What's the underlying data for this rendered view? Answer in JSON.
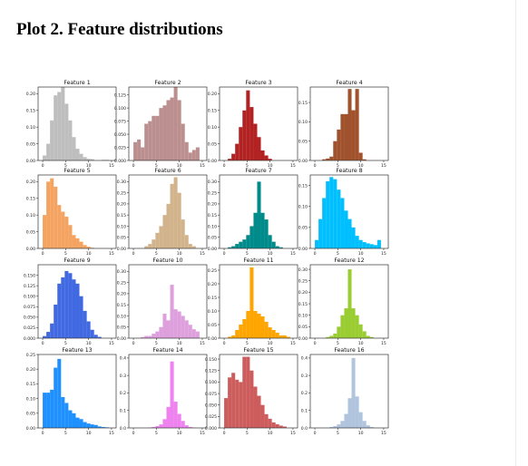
{
  "page": {
    "title": "Plot 2. Feature distributions"
  },
  "chart_data": [
    {
      "type": "bar",
      "title": "Feature 1",
      "color": "#bebebe",
      "xlim": [
        -1,
        16
      ],
      "ylim": [
        0,
        0.22
      ],
      "xticks": [
        {
          "v": 0,
          "t": "0"
        },
        {
          "v": 5,
          "t": "5"
        },
        {
          "v": 10,
          "t": "10"
        },
        {
          "v": 15,
          "t": "15"
        }
      ],
      "yticks": [
        {
          "v": 0,
          "t": "0.00"
        },
        {
          "v": 0.05,
          "t": "0.05"
        },
        {
          "v": 0.1,
          "t": "0.10"
        },
        {
          "v": 0.15,
          "t": "0.15"
        },
        {
          "v": 0.2,
          "t": "0.20"
        }
      ],
      "bin_start": 0,
      "bin_width": 0.8,
      "values": [
        0.015,
        0.05,
        0.12,
        0.195,
        0.205,
        0.22,
        0.17,
        0.12,
        0.07,
        0.035,
        0.02,
        0.01,
        0.005,
        0.004,
        0.0,
        0.0,
        0.002,
        0.002
      ]
    },
    {
      "type": "bar",
      "title": "Feature 2",
      "color": "#bc8f8f",
      "xlim": [
        -1,
        16
      ],
      "ylim": [
        0,
        0.14
      ],
      "xticks": [
        {
          "v": 0,
          "t": "0"
        },
        {
          "v": 5,
          "t": "5"
        },
        {
          "v": 10,
          "t": "10"
        },
        {
          "v": 15,
          "t": "15"
        }
      ],
      "yticks": [
        {
          "v": 0,
          "t": "0.000"
        },
        {
          "v": 0.025,
          "t": "0.025"
        },
        {
          "v": 0.05,
          "t": "0.050"
        },
        {
          "v": 0.075,
          "t": "0.075"
        },
        {
          "v": 0.1,
          "t": "0.100"
        },
        {
          "v": 0.125,
          "t": "0.125"
        }
      ],
      "bin_start": 0,
      "bin_width": 0.8,
      "values": [
        0.035,
        0.04,
        0.025,
        0.07,
        0.075,
        0.085,
        0.085,
        0.1,
        0.105,
        0.115,
        0.12,
        0.14,
        0.115,
        0.07,
        0.035,
        0.015,
        0.02,
        0.025
      ]
    },
    {
      "type": "bar",
      "title": "Feature 3",
      "color": "#b22222",
      "xlim": [
        -1,
        16
      ],
      "ylim": [
        0,
        0.22
      ],
      "xticks": [
        {
          "v": 0,
          "t": "0"
        },
        {
          "v": 5,
          "t": "5"
        },
        {
          "v": 10,
          "t": "10"
        },
        {
          "v": 15,
          "t": "15"
        }
      ],
      "yticks": [
        {
          "v": 0,
          "t": "0.00"
        },
        {
          "v": 0.05,
          "t": "0.05"
        },
        {
          "v": 0.1,
          "t": "0.10"
        },
        {
          "v": 0.15,
          "t": "0.15"
        },
        {
          "v": 0.2,
          "t": "0.20"
        }
      ],
      "bin_start": 0,
      "bin_width": 0.8,
      "values": [
        0.0,
        0.005,
        0.02,
        0.05,
        0.1,
        0.15,
        0.21,
        0.16,
        0.11,
        0.07,
        0.03,
        0.015,
        0.005,
        0.0,
        0.0,
        0.0,
        0.0,
        0.0
      ]
    },
    {
      "type": "bar",
      "title": "Feature 4",
      "color": "#a0522d",
      "xlim": [
        -1,
        16
      ],
      "ylim": [
        0,
        0.19
      ],
      "xticks": [
        {
          "v": 0,
          "t": "0"
        },
        {
          "v": 5,
          "t": "5"
        },
        {
          "v": 10,
          "t": "10"
        },
        {
          "v": 15,
          "t": "15"
        }
      ],
      "yticks": [
        {
          "v": 0,
          "t": "0.00"
        },
        {
          "v": 0.05,
          "t": "0.05"
        },
        {
          "v": 0.1,
          "t": "0.10"
        },
        {
          "v": 0.15,
          "t": "0.15"
        }
      ],
      "bin_start": 0,
      "bin_width": 0.8,
      "values": [
        0.0,
        0.0,
        0.003,
        0.005,
        0.01,
        0.05,
        0.08,
        0.12,
        0.12,
        0.185,
        0.13,
        0.185,
        0.02,
        0.003,
        0.0,
        0.0,
        0.0,
        0.0
      ]
    },
    {
      "type": "bar",
      "title": "Feature 5",
      "color": "#f4a460",
      "xlim": [
        -1,
        16
      ],
      "ylim": [
        0,
        0.22
      ],
      "xticks": [
        {
          "v": 0,
          "t": "0"
        },
        {
          "v": 5,
          "t": "5"
        },
        {
          "v": 10,
          "t": "10"
        },
        {
          "v": 15,
          "t": "15"
        }
      ],
      "yticks": [
        {
          "v": 0,
          "t": "0.00"
        },
        {
          "v": 0.05,
          "t": "0.05"
        },
        {
          "v": 0.1,
          "t": "0.10"
        },
        {
          "v": 0.15,
          "t": "0.15"
        },
        {
          "v": 0.2,
          "t": "0.20"
        }
      ],
      "bin_start": 0,
      "bin_width": 0.8,
      "values": [
        0.1,
        0.2,
        0.21,
        0.185,
        0.13,
        0.11,
        0.095,
        0.07,
        0.04,
        0.03,
        0.02,
        0.01,
        0.005,
        0.002,
        0.0,
        0.0,
        0.0,
        0.0
      ]
    },
    {
      "type": "bar",
      "title": "Feature 6",
      "color": "#d2b48c",
      "xlim": [
        -1,
        16
      ],
      "ylim": [
        0,
        0.33
      ],
      "xticks": [
        {
          "v": 0,
          "t": "0"
        },
        {
          "v": 5,
          "t": "5"
        },
        {
          "v": 10,
          "t": "10"
        },
        {
          "v": 15,
          "t": "15"
        }
      ],
      "yticks": [
        {
          "v": 0,
          "t": "0.00"
        },
        {
          "v": 0.05,
          "t": "0.05"
        },
        {
          "v": 0.1,
          "t": "0.10"
        },
        {
          "v": 0.15,
          "t": "0.15"
        },
        {
          "v": 0.2,
          "t": "0.20"
        },
        {
          "v": 0.25,
          "t": "0.25"
        },
        {
          "v": 0.3,
          "t": "0.30"
        }
      ],
      "bin_start": 0,
      "bin_width": 0.8,
      "values": [
        0.0,
        0.0,
        0.0,
        0.01,
        0.02,
        0.04,
        0.07,
        0.1,
        0.15,
        0.2,
        0.29,
        0.32,
        0.25,
        0.13,
        0.06,
        0.02,
        0.01,
        0.0
      ]
    },
    {
      "type": "bar",
      "title": "Feature 7",
      "color": "#008b8b",
      "xlim": [
        -1,
        16
      ],
      "ylim": [
        0,
        0.33
      ],
      "xticks": [
        {
          "v": 0,
          "t": "0"
        },
        {
          "v": 5,
          "t": "5"
        },
        {
          "v": 10,
          "t": "10"
        },
        {
          "v": 15,
          "t": "15"
        }
      ],
      "yticks": [
        {
          "v": 0,
          "t": "0.00"
        },
        {
          "v": 0.05,
          "t": "0.05"
        },
        {
          "v": 0.1,
          "t": "0.10"
        },
        {
          "v": 0.15,
          "t": "0.15"
        },
        {
          "v": 0.2,
          "t": "0.20"
        },
        {
          "v": 0.25,
          "t": "0.25"
        },
        {
          "v": 0.3,
          "t": "0.30"
        }
      ],
      "bin_start": 0,
      "bin_width": 0.8,
      "values": [
        0.0,
        0.005,
        0.01,
        0.02,
        0.03,
        0.04,
        0.06,
        0.1,
        0.16,
        0.3,
        0.16,
        0.13,
        0.06,
        0.03,
        0.01,
        0.005,
        0.0,
        0.0
      ]
    },
    {
      "type": "bar",
      "title": "Feature 8",
      "color": "#00bfff",
      "xlim": [
        -1,
        16
      ],
      "ylim": [
        0,
        0.175
      ],
      "xticks": [
        {
          "v": 0,
          "t": "0"
        },
        {
          "v": 5,
          "t": "5"
        },
        {
          "v": 10,
          "t": "10"
        },
        {
          "v": 15,
          "t": "15"
        }
      ],
      "yticks": [
        {
          "v": 0,
          "t": "0.00"
        },
        {
          "v": 0.05,
          "t": "0.05"
        },
        {
          "v": 0.1,
          "t": "0.10"
        },
        {
          "v": 0.15,
          "t": "0.15"
        }
      ],
      "bin_start": 0,
      "bin_width": 0.8,
      "values": [
        0.02,
        0.07,
        0.12,
        0.16,
        0.17,
        0.165,
        0.14,
        0.12,
        0.09,
        0.07,
        0.05,
        0.03,
        0.02,
        0.015,
        0.012,
        0.01,
        0.008,
        0.02
      ]
    },
    {
      "type": "bar",
      "title": "Feature 9",
      "color": "#4169e1",
      "xlim": [
        -1,
        16
      ],
      "ylim": [
        0,
        0.175
      ],
      "xticks": [
        {
          "v": 0,
          "t": "0"
        },
        {
          "v": 5,
          "t": "5"
        },
        {
          "v": 10,
          "t": "10"
        },
        {
          "v": 15,
          "t": "15"
        }
      ],
      "yticks": [
        {
          "v": 0,
          "t": "0.000"
        },
        {
          "v": 0.025,
          "t": "0.025"
        },
        {
          "v": 0.05,
          "t": "0.050"
        },
        {
          "v": 0.075,
          "t": "0.075"
        },
        {
          "v": 0.1,
          "t": "0.100"
        },
        {
          "v": 0.125,
          "t": "0.125"
        },
        {
          "v": 0.15,
          "t": "0.150"
        }
      ],
      "bin_start": 0,
      "bin_width": 0.8,
      "values": [
        0.005,
        0.015,
        0.035,
        0.08,
        0.13,
        0.145,
        0.16,
        0.155,
        0.14,
        0.13,
        0.1,
        0.065,
        0.04,
        0.02,
        0.008,
        0.003,
        0.0,
        0.0
      ]
    },
    {
      "type": "bar",
      "title": "Feature 10",
      "color": "#dda0dd",
      "xlim": [
        -1,
        16
      ],
      "ylim": [
        0,
        0.33
      ],
      "xticks": [
        {
          "v": 0,
          "t": "0"
        },
        {
          "v": 5,
          "t": "5"
        },
        {
          "v": 10,
          "t": "10"
        },
        {
          "v": 15,
          "t": "15"
        }
      ],
      "yticks": [
        {
          "v": 0,
          "t": "0.00"
        },
        {
          "v": 0.05,
          "t": "0.05"
        },
        {
          "v": 0.1,
          "t": "0.10"
        },
        {
          "v": 0.15,
          "t": "0.15"
        },
        {
          "v": 0.2,
          "t": "0.20"
        },
        {
          "v": 0.25,
          "t": "0.25"
        },
        {
          "v": 0.3,
          "t": "0.30"
        }
      ],
      "bin_start": 0,
      "bin_width": 0.8,
      "values": [
        0.0,
        0.0,
        0.005,
        0.01,
        0.01,
        0.02,
        0.03,
        0.05,
        0.11,
        0.08,
        0.24,
        0.13,
        0.12,
        0.1,
        0.08,
        0.06,
        0.04,
        0.03
      ]
    },
    {
      "type": "bar",
      "title": "Feature 11",
      "color": "#ffa500",
      "xlim": [
        -1,
        16
      ],
      "ylim": [
        0,
        0.27
      ],
      "xticks": [
        {
          "v": 0,
          "t": "0"
        },
        {
          "v": 5,
          "t": "5"
        },
        {
          "v": 10,
          "t": "10"
        },
        {
          "v": 15,
          "t": "15"
        }
      ],
      "yticks": [
        {
          "v": 0,
          "t": "0.00"
        },
        {
          "v": 0.05,
          "t": "0.05"
        },
        {
          "v": 0.1,
          "t": "0.10"
        },
        {
          "v": 0.15,
          "t": "0.15"
        },
        {
          "v": 0.2,
          "t": "0.20"
        },
        {
          "v": 0.25,
          "t": "0.25"
        }
      ],
      "bin_start": 0,
      "bin_width": 0.8,
      "values": [
        0.0,
        0.005,
        0.01,
        0.03,
        0.05,
        0.07,
        0.1,
        0.26,
        0.1,
        0.09,
        0.08,
        0.06,
        0.04,
        0.03,
        0.02,
        0.01,
        0.01,
        0.005
      ]
    },
    {
      "type": "bar",
      "title": "Feature 12",
      "color": "#9acd32",
      "xlim": [
        -1,
        16
      ],
      "ylim": [
        0,
        0.32
      ],
      "xticks": [
        {
          "v": 0,
          "t": "0"
        },
        {
          "v": 5,
          "t": "5"
        },
        {
          "v": 10,
          "t": "10"
        },
        {
          "v": 15,
          "t": "15"
        }
      ],
      "yticks": [
        {
          "v": 0,
          "t": "0.00"
        },
        {
          "v": 0.05,
          "t": "0.05"
        },
        {
          "v": 0.1,
          "t": "0.10"
        },
        {
          "v": 0.15,
          "t": "0.15"
        },
        {
          "v": 0.2,
          "t": "0.20"
        },
        {
          "v": 0.25,
          "t": "0.25"
        },
        {
          "v": 0.3,
          "t": "0.30"
        }
      ],
      "bin_start": 0,
      "bin_width": 0.8,
      "values": [
        0.0,
        0.0,
        0.0,
        0.005,
        0.01,
        0.02,
        0.05,
        0.1,
        0.13,
        0.3,
        0.13,
        0.1,
        0.06,
        0.03,
        0.01,
        0.005,
        0.0,
        0.0
      ]
    },
    {
      "type": "bar",
      "title": "Feature 13",
      "color": "#1e90ff",
      "xlim": [
        -1,
        16
      ],
      "ylim": [
        0,
        0.25
      ],
      "xticks": [
        {
          "v": 0,
          "t": "0"
        },
        {
          "v": 5,
          "t": "5"
        },
        {
          "v": 10,
          "t": "10"
        },
        {
          "v": 15,
          "t": "15"
        }
      ],
      "yticks": [
        {
          "v": 0,
          "t": "0.00"
        },
        {
          "v": 0.05,
          "t": "0.05"
        },
        {
          "v": 0.1,
          "t": "0.10"
        },
        {
          "v": 0.15,
          "t": "0.15"
        },
        {
          "v": 0.2,
          "t": "0.20"
        },
        {
          "v": 0.25,
          "t": "0.25"
        }
      ],
      "bin_start": 0,
      "bin_width": 0.8,
      "values": [
        0.12,
        0.12,
        0.13,
        0.205,
        0.235,
        0.105,
        0.085,
        0.06,
        0.05,
        0.035,
        0.03,
        0.02,
        0.015,
        0.012,
        0.01,
        0.005,
        0.003,
        0.002
      ]
    },
    {
      "type": "bar",
      "title": "Feature 14",
      "color": "#ee82ee",
      "xlim": [
        -1,
        16
      ],
      "ylim": [
        0,
        0.42
      ],
      "xticks": [
        {
          "v": 0,
          "t": "0"
        },
        {
          "v": 5,
          "t": "5"
        },
        {
          "v": 10,
          "t": "10"
        },
        {
          "v": 15,
          "t": "15"
        }
      ],
      "yticks": [
        {
          "v": 0,
          "t": "0.0"
        },
        {
          "v": 0.1,
          "t": "0.1"
        },
        {
          "v": 0.2,
          "t": "0.2"
        },
        {
          "v": 0.3,
          "t": "0.3"
        },
        {
          "v": 0.4,
          "t": "0.4"
        }
      ],
      "bin_start": 0,
      "bin_width": 0.8,
      "values": [
        0.0,
        0.0,
        0.0,
        0.0,
        0.002,
        0.005,
        0.01,
        0.02,
        0.05,
        0.12,
        0.38,
        0.15,
        0.08,
        0.04,
        0.015,
        0.005,
        0.002,
        0.0
      ]
    },
    {
      "type": "bar",
      "title": "Feature 15",
      "color": "#cd5c5c",
      "xlim": [
        -1,
        16
      ],
      "ylim": [
        0,
        0.16
      ],
      "xticks": [
        {
          "v": 0,
          "t": "0"
        },
        {
          "v": 5,
          "t": "5"
        },
        {
          "v": 10,
          "t": "10"
        },
        {
          "v": 15,
          "t": "15"
        }
      ],
      "yticks": [
        {
          "v": 0,
          "t": "0.000"
        },
        {
          "v": 0.025,
          "t": "0.025"
        },
        {
          "v": 0.05,
          "t": "0.050"
        },
        {
          "v": 0.075,
          "t": "0.075"
        },
        {
          "v": 0.1,
          "t": "0.100"
        },
        {
          "v": 0.125,
          "t": "0.125"
        },
        {
          "v": 0.15,
          "t": "0.150"
        }
      ],
      "bin_start": 0,
      "bin_width": 0.8,
      "values": [
        0.065,
        0.11,
        0.12,
        0.105,
        0.1,
        0.155,
        0.155,
        0.125,
        0.09,
        0.07,
        0.05,
        0.03,
        0.02,
        0.012,
        0.008,
        0.005,
        0.003,
        0.0
      ]
    },
    {
      "type": "bar",
      "title": "Feature 16",
      "color": "#b0c4de",
      "xlim": [
        -1,
        16
      ],
      "ylim": [
        0,
        0.42
      ],
      "xticks": [
        {
          "v": 0,
          "t": "0"
        },
        {
          "v": 5,
          "t": "5"
        },
        {
          "v": 10,
          "t": "10"
        },
        {
          "v": 15,
          "t": "15"
        }
      ],
      "yticks": [
        {
          "v": 0,
          "t": "0.0"
        },
        {
          "v": 0.1,
          "t": "0.1"
        },
        {
          "v": 0.2,
          "t": "0.2"
        },
        {
          "v": 0.3,
          "t": "0.3"
        },
        {
          "v": 0.4,
          "t": "0.4"
        }
      ],
      "bin_start": 0,
      "bin_width": 0.8,
      "values": [
        0.0,
        0.0,
        0.0,
        0.0,
        0.005,
        0.01,
        0.02,
        0.04,
        0.08,
        0.17,
        0.4,
        0.18,
        0.09,
        0.04,
        0.015,
        0.005,
        0.0,
        0.0
      ]
    }
  ]
}
